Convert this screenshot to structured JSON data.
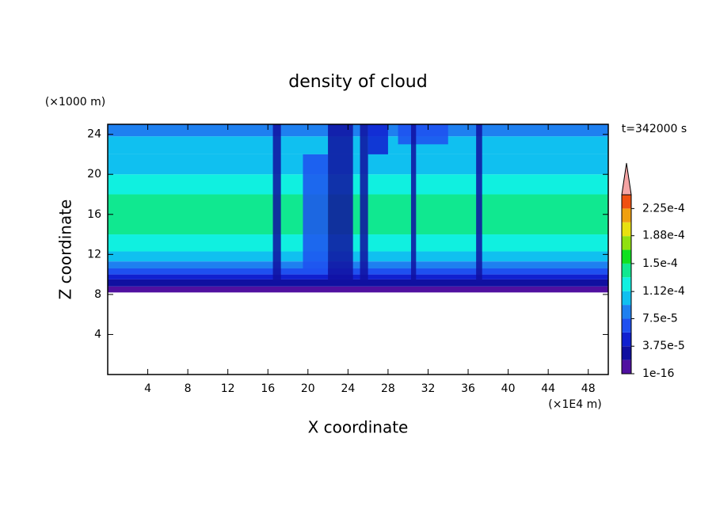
{
  "chart_data": {
    "type": "contour",
    "title": "density of cloud",
    "xlabel": "X coordinate",
    "ylabel": "Z coordinate",
    "x_unit": "(×1E4 m)",
    "y_unit": "(×1000 m)",
    "annotation": "t=342000 s",
    "xlim": [
      0,
      50
    ],
    "xticks": [
      4,
      8,
      12,
      16,
      20,
      24,
      28,
      32,
      36,
      40,
      44,
      48
    ],
    "ylim": [
      0,
      25
    ],
    "yticks": [
      4,
      8,
      12,
      16,
      20,
      24
    ],
    "levels": [
      1e-16,
      1.875e-05,
      3.75e-05,
      5.625e-05,
      7.5e-05,
      9.375e-05,
      0.0001125,
      0.00013125,
      0.00015,
      0.00016875,
      0.0001875,
      0.00020625,
      0.000225,
      0.00024375
    ],
    "colors": [
      "#5010a0",
      "#1010a0",
      "#1020d0",
      "#1e50f0",
      "#1e80f0",
      "#10c0f0",
      "#10f0e0",
      "#10e890",
      "#10e020",
      "#90e010",
      "#e8e010",
      "#f0a010",
      "#f05010"
    ],
    "extend_color": "#f4a4a4",
    "colorbar_ticks": [
      {
        "value": 1e-16,
        "label": "1e-16"
      },
      {
        "value": 3.75e-05,
        "label": "3.75e-5"
      },
      {
        "value": 7.5e-05,
        "label": "7.5e-5"
      },
      {
        "value": 0.000112,
        "label": "1.12e-4"
      },
      {
        "value": 0.00015,
        "label": "1.5e-4"
      },
      {
        "value": 0.000188,
        "label": "1.88e-4"
      },
      {
        "value": 0.000225,
        "label": "2.25e-4"
      }
    ],
    "profile": {
      "z": [
        8.2,
        8.8,
        9.5,
        10,
        10.6,
        11.3,
        12.3,
        14,
        18,
        20,
        22,
        23.8,
        25
      ],
      "density": [
        1e-05,
        2.5e-05,
        4.5e-05,
        6e-05,
        8e-05,
        0.0001,
        0.00012,
        0.00014,
        0.00012,
        0.000105,
        0.0001,
        8e-05
      ]
    },
    "disturbances": [
      {
        "x": [
          16.5,
          17.3
        ],
        "z": [
          9,
          25
        ],
        "density": 3e-05
      },
      {
        "x": [
          19.5,
          22
        ],
        "z": [
          10,
          22
        ],
        "density": 7e-05
      },
      {
        "x": [
          22,
          24.5
        ],
        "z": [
          9,
          25
        ],
        "density": 2e-05
      },
      {
        "x": [
          25.2,
          26
        ],
        "z": [
          9,
          25
        ],
        "density": 3e-05
      },
      {
        "x": [
          26,
          28
        ],
        "z": [
          22,
          25
        ],
        "density": 4e-05
      },
      {
        "x": [
          29,
          34
        ],
        "z": [
          23,
          25
        ],
        "density": 6e-05
      },
      {
        "x": [
          30.3,
          30.8
        ],
        "z": [
          9,
          25
        ],
        "density": 2e-05
      },
      {
        "x": [
          36.8,
          37.4
        ],
        "z": [
          9,
          25
        ],
        "density": 2e-05
      }
    ]
  }
}
